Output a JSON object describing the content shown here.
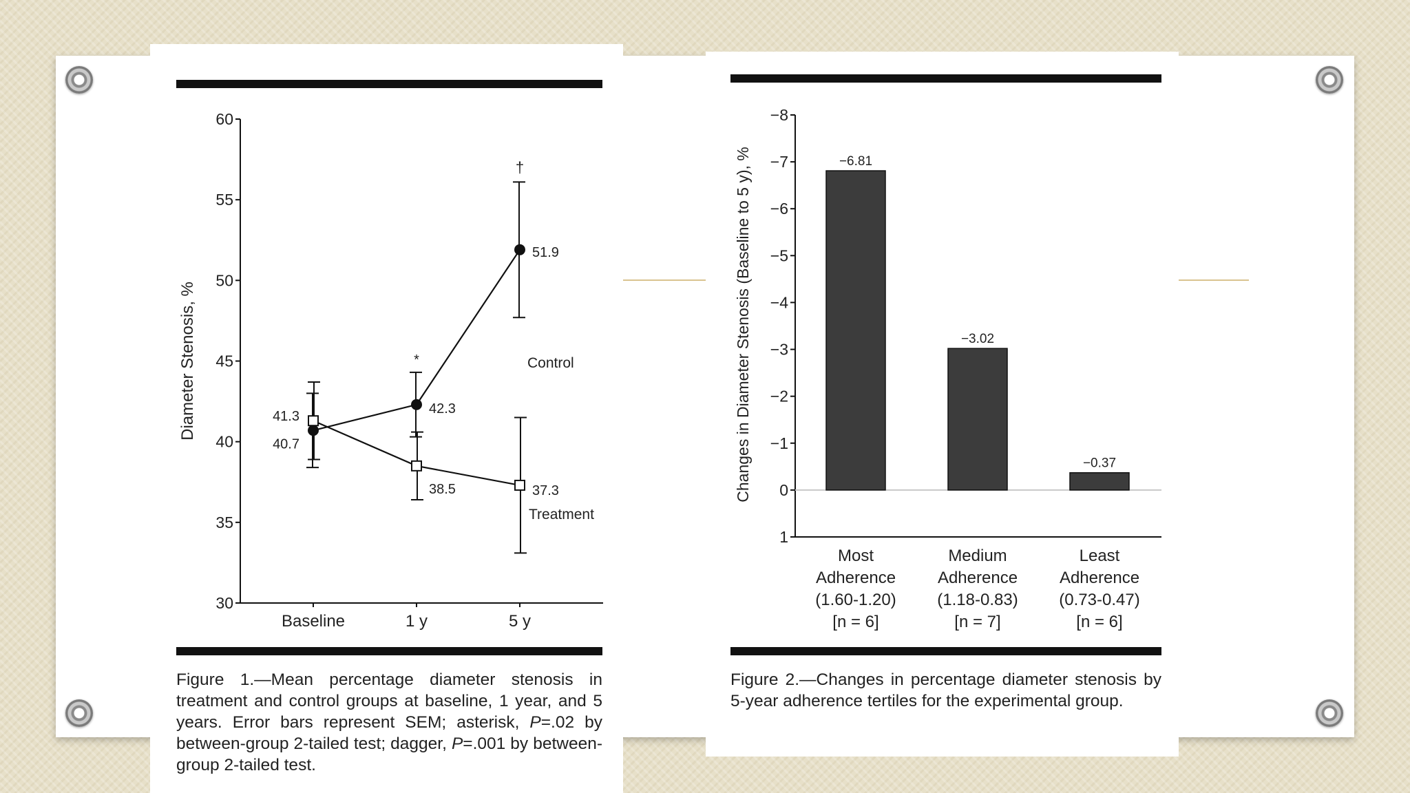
{
  "charts_meta": {
    "ink": "#111111",
    "bar_fill": "#3c3c3c"
  },
  "figure1": {
    "caption_lead": "Figure 1.",
    "caption_text": "—Mean percentage diameter stenosis in treatment and control groups at baseline, 1 year, and 5 years. Error bars represent SEM; asterisk, ",
    "caption_p1": "P",
    "caption_mid": "=.02 by between-group 2-tailed test; dagger, ",
    "caption_p2": "P",
    "caption_end": "=.001 by between-group 2-tailed test."
  },
  "figure2": {
    "caption": "Figure 2.—Changes in percentage diameter stenosis by 5-year adherence tertiles for the experimental group."
  },
  "chart_data": [
    {
      "type": "line",
      "ylabel": "Diameter Stenosis, %",
      "xlabel": "",
      "categories": [
        "Baseline",
        "1 y",
        "5 y"
      ],
      "ylim": [
        30,
        60
      ],
      "yticks": [
        30,
        35,
        40,
        45,
        50,
        55,
        60
      ],
      "series": [
        {
          "name": "Control",
          "marker": "filled-circle",
          "values": [
            40.7,
            42.3,
            51.9
          ],
          "labels": [
            "40.7",
            "42.3",
            "51.9"
          ],
          "sem": [
            2.3,
            2.0,
            4.2
          ]
        },
        {
          "name": "Treatment",
          "marker": "open-square",
          "values": [
            41.3,
            38.5,
            37.3
          ],
          "labels": [
            "41.3",
            "38.5",
            "37.3"
          ],
          "sem": [
            2.4,
            2.1,
            4.2
          ]
        }
      ],
      "annotations": [
        {
          "category": "1 y",
          "text": "*"
        },
        {
          "category": "5 y",
          "text": "†"
        }
      ],
      "grid": false
    },
    {
      "type": "bar",
      "ylabel": "Changes in Diameter Stenosis (Baseline to 5 y), %",
      "categories": [
        [
          "Most",
          "Adherence",
          "(1.60-1.20)",
          "[n = 6]"
        ],
        [
          "Medium",
          "Adherence",
          "(1.18-0.83)",
          "[n = 7]"
        ],
        [
          "Least",
          "Adherence",
          "(0.73-0.47)",
          "[n = 6]"
        ]
      ],
      "values": [
        -6.81,
        -3.02,
        -0.37
      ],
      "value_labels": [
        "−6.81",
        "−3.02",
        "−0.37"
      ],
      "ylim": [
        1,
        -8
      ],
      "yticks": [
        1,
        0,
        -1,
        -2,
        -3,
        -4,
        -5,
        -6,
        -7,
        -8
      ],
      "ytick_labels": [
        "1",
        "0",
        "−1",
        "−2",
        "−3",
        "−4",
        "−5",
        "−6",
        "−7",
        "−8"
      ],
      "axis_inverted": true,
      "grid": false
    }
  ]
}
